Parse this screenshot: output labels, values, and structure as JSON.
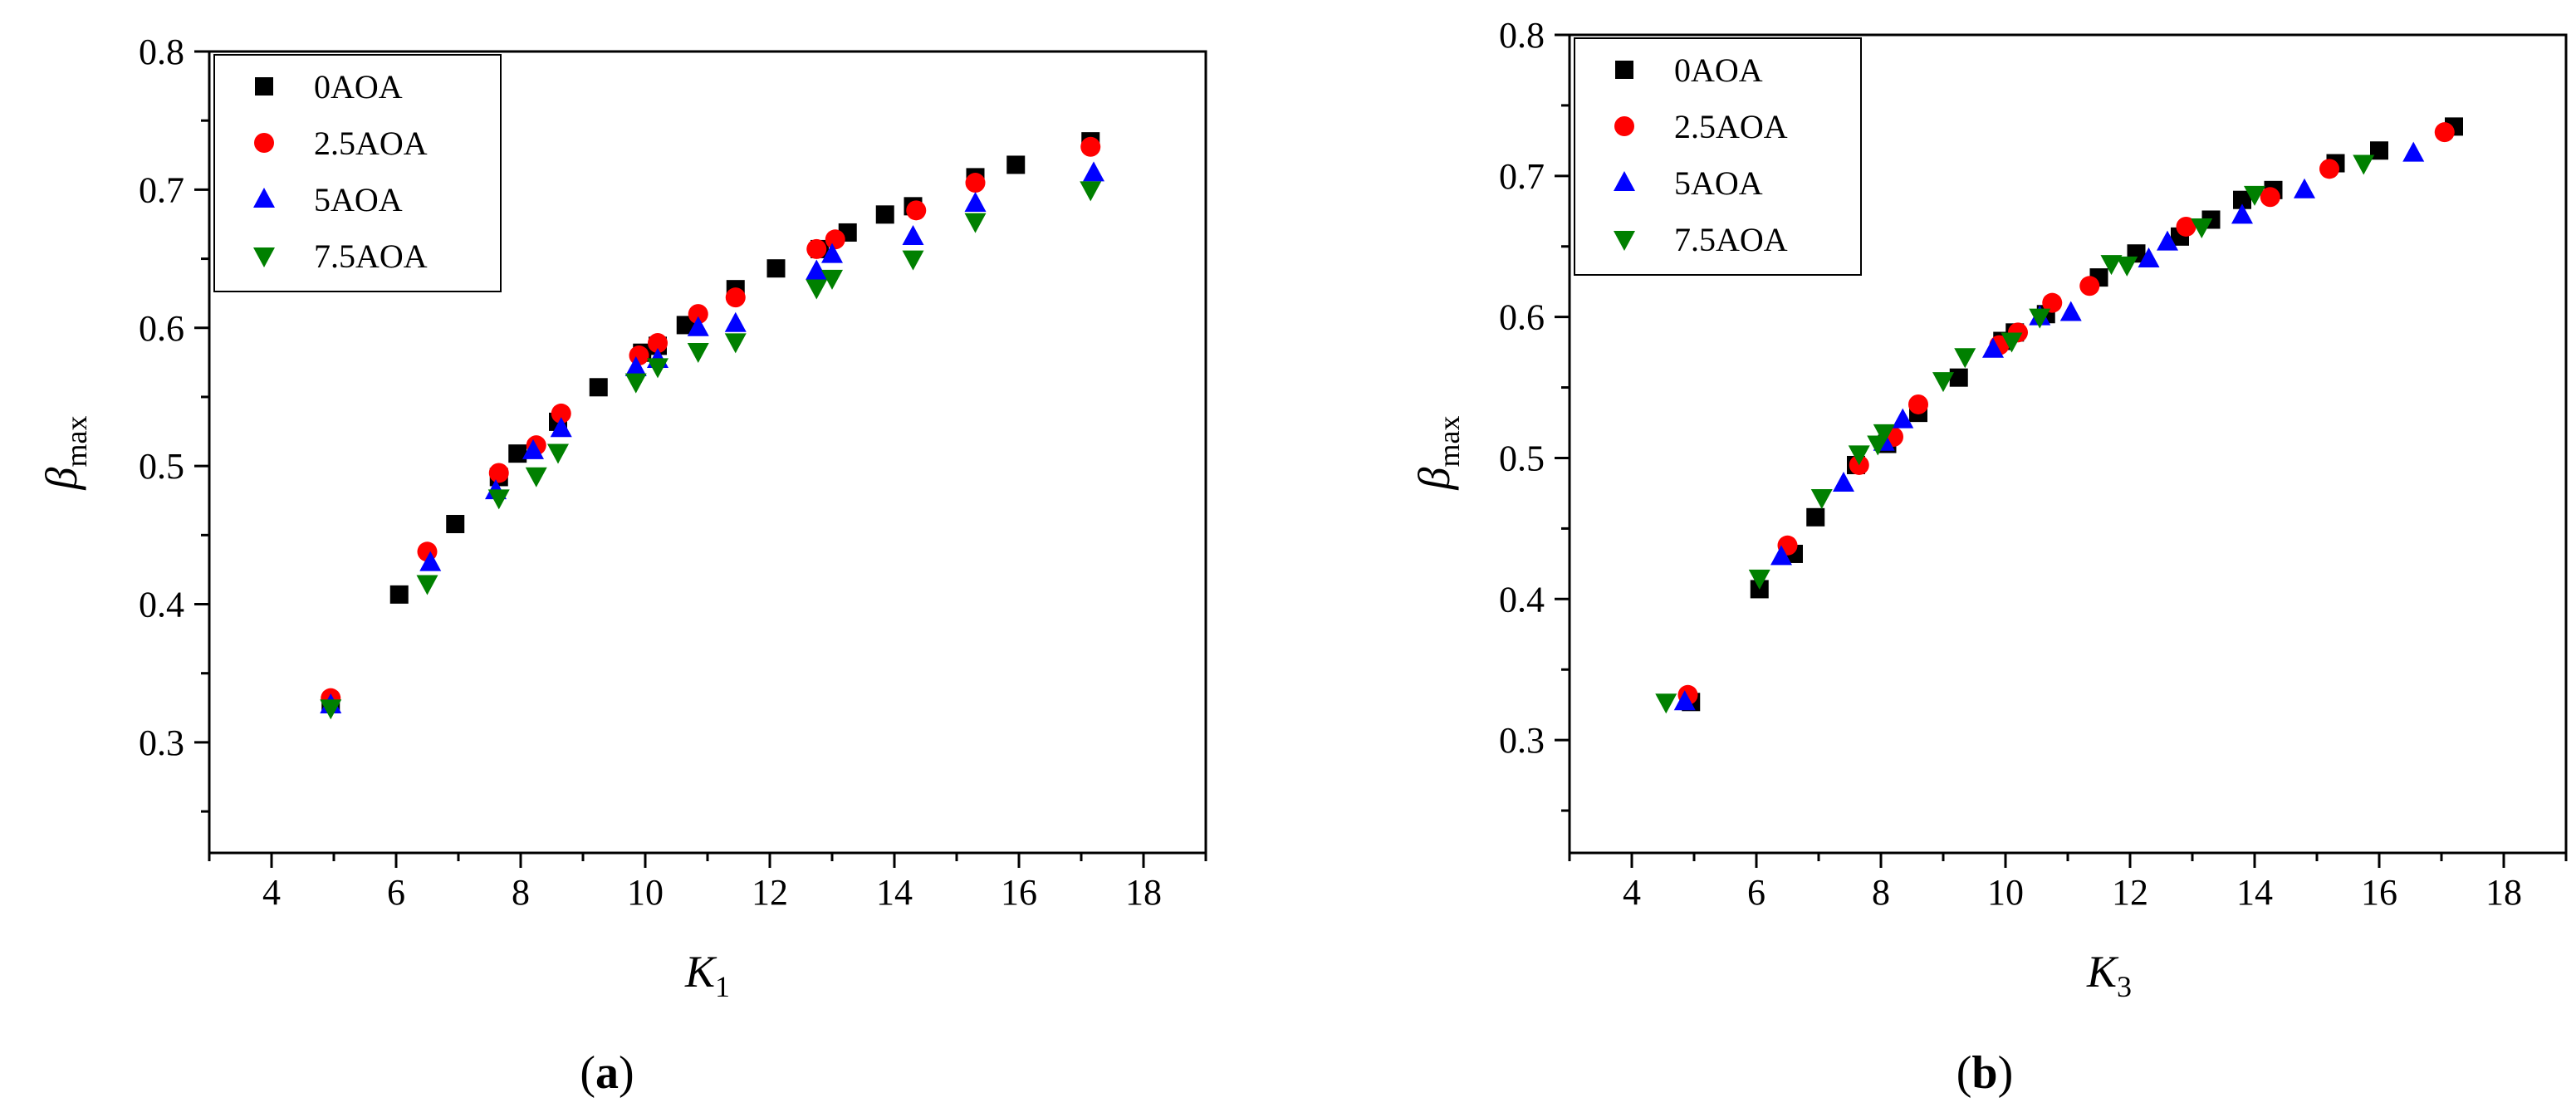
{
  "figure_labels": {
    "a": "a",
    "b": "b"
  },
  "colors": {
    "0AOA": "#000000",
    "2.5AOA": "#ff0000",
    "5AOA": "#0000ff",
    "7.5AOA": "#008000"
  },
  "chart_data": [
    {
      "type": "scatter",
      "panel": "a",
      "xlabel_main": "K",
      "xlabel_sub": "1",
      "ylabel_main": "β",
      "ylabel_sub": "max",
      "xlim": [
        3,
        19
      ],
      "ylim": [
        0.22,
        0.8
      ],
      "xticks": [
        4,
        6,
        8,
        10,
        12,
        14,
        16,
        18
      ],
      "yticks": [
        0.3,
        0.4,
        0.5,
        0.6,
        0.7,
        0.8
      ],
      "legend": "top-left",
      "series": [
        {
          "name": "0AOA",
          "marker": "square",
          "x": [
            4.95,
            6.05,
            6.95,
            7.65,
            7.95,
            8.6,
            9.25,
            9.95,
            10.2,
            10.65,
            11.45,
            12.1,
            12.8,
            13.25,
            13.85,
            14.3,
            15.3,
            15.95,
            17.15
          ],
          "y": [
            0.328,
            0.407,
            0.458,
            0.492,
            0.509,
            0.532,
            0.557,
            0.582,
            0.587,
            0.602,
            0.628,
            0.643,
            0.657,
            0.669,
            0.682,
            0.688,
            0.709,
            0.718,
            0.735
          ]
        },
        {
          "name": "2.5AOA",
          "marker": "circle",
          "x": [
            4.95,
            6.5,
            7.65,
            8.25,
            8.65,
            9.9,
            10.2,
            10.85,
            11.45,
            12.75,
            13.05,
            14.35,
            15.3,
            17.15
          ],
          "y": [
            0.332,
            0.438,
            0.495,
            0.515,
            0.538,
            0.58,
            0.589,
            0.61,
            0.622,
            0.657,
            0.664,
            0.685,
            0.705,
            0.731
          ]
        },
        {
          "name": "5AOA",
          "marker": "triangle-up",
          "x": [
            4.95,
            6.55,
            7.6,
            8.2,
            8.65,
            9.85,
            10.2,
            10.85,
            11.45,
            12.75,
            13.0,
            14.3,
            15.3,
            17.2
          ],
          "y": [
            0.327,
            0.43,
            0.482,
            0.511,
            0.527,
            0.571,
            0.577,
            0.6,
            0.603,
            0.641,
            0.653,
            0.666,
            0.69,
            0.712
          ]
        },
        {
          "name": "7.5AOA",
          "marker": "triangle-down",
          "x": [
            4.95,
            6.5,
            7.65,
            8.25,
            8.6,
            9.85,
            10.2,
            10.85,
            11.45,
            12.75,
            13.0,
            14.3,
            15.3,
            17.15
          ],
          "y": [
            0.325,
            0.415,
            0.477,
            0.493,
            0.51,
            0.561,
            0.572,
            0.583,
            0.59,
            0.629,
            0.636,
            0.65,
            0.677,
            0.7
          ]
        }
      ]
    },
    {
      "type": "scatter",
      "panel": "b",
      "xlabel_main": "K",
      "xlabel_sub": "3",
      "ylabel_main": "β",
      "ylabel_sub": "max",
      "xlim": [
        3,
        19
      ],
      "ylim": [
        0.22,
        0.8
      ],
      "xticks": [
        4,
        6,
        8,
        10,
        12,
        14,
        16,
        18
      ],
      "yticks": [
        0.3,
        0.4,
        0.5,
        0.6,
        0.7,
        0.8
      ],
      "legend": "top-left",
      "series": [
        {
          "name": "0AOA",
          "marker": "square",
          "x": [
            4.95,
            6.05,
            6.6,
            6.95,
            7.6,
            8.1,
            8.6,
            9.25,
            9.95,
            10.15,
            10.65,
            11.5,
            12.1,
            12.8,
            13.3,
            13.8,
            14.3,
            15.3,
            16.0,
            17.2
          ],
          "y": [
            0.327,
            0.407,
            0.432,
            0.458,
            0.495,
            0.51,
            0.532,
            0.557,
            0.583,
            0.589,
            0.602,
            0.628,
            0.645,
            0.657,
            0.669,
            0.683,
            0.69,
            0.709,
            0.718,
            0.735
          ]
        },
        {
          "name": "2.5AOA",
          "marker": "circle",
          "x": [
            4.9,
            6.5,
            7.65,
            8.2,
            8.6,
            9.9,
            10.2,
            10.75,
            11.35,
            12.9,
            14.25,
            15.2,
            17.05
          ],
          "y": [
            0.332,
            0.438,
            0.495,
            0.515,
            0.538,
            0.58,
            0.589,
            0.61,
            0.622,
            0.664,
            0.685,
            0.705,
            0.731
          ]
        },
        {
          "name": "5AOA",
          "marker": "triangle-up",
          "x": [
            4.85,
            6.4,
            7.4,
            8.05,
            8.35,
            9.8,
            10.55,
            11.05,
            12.3,
            12.6,
            13.8,
            14.8,
            16.55
          ],
          "y": [
            0.327,
            0.43,
            0.482,
            0.511,
            0.527,
            0.577,
            0.6,
            0.603,
            0.641,
            0.653,
            0.672,
            0.69,
            0.716
          ]
        },
        {
          "name": "7.5AOA",
          "marker": "triangle-down",
          "x": [
            4.55,
            6.05,
            7.05,
            7.65,
            7.95,
            8.05,
            9.0,
            9.35,
            10.1,
            10.55,
            11.7,
            11.95,
            13.15,
            14.0,
            15.75
          ],
          "y": [
            0.327,
            0.415,
            0.472,
            0.503,
            0.51,
            0.518,
            0.555,
            0.572,
            0.583,
            0.6,
            0.638,
            0.637,
            0.664,
            0.687,
            0.709
          ]
        }
      ]
    }
  ]
}
